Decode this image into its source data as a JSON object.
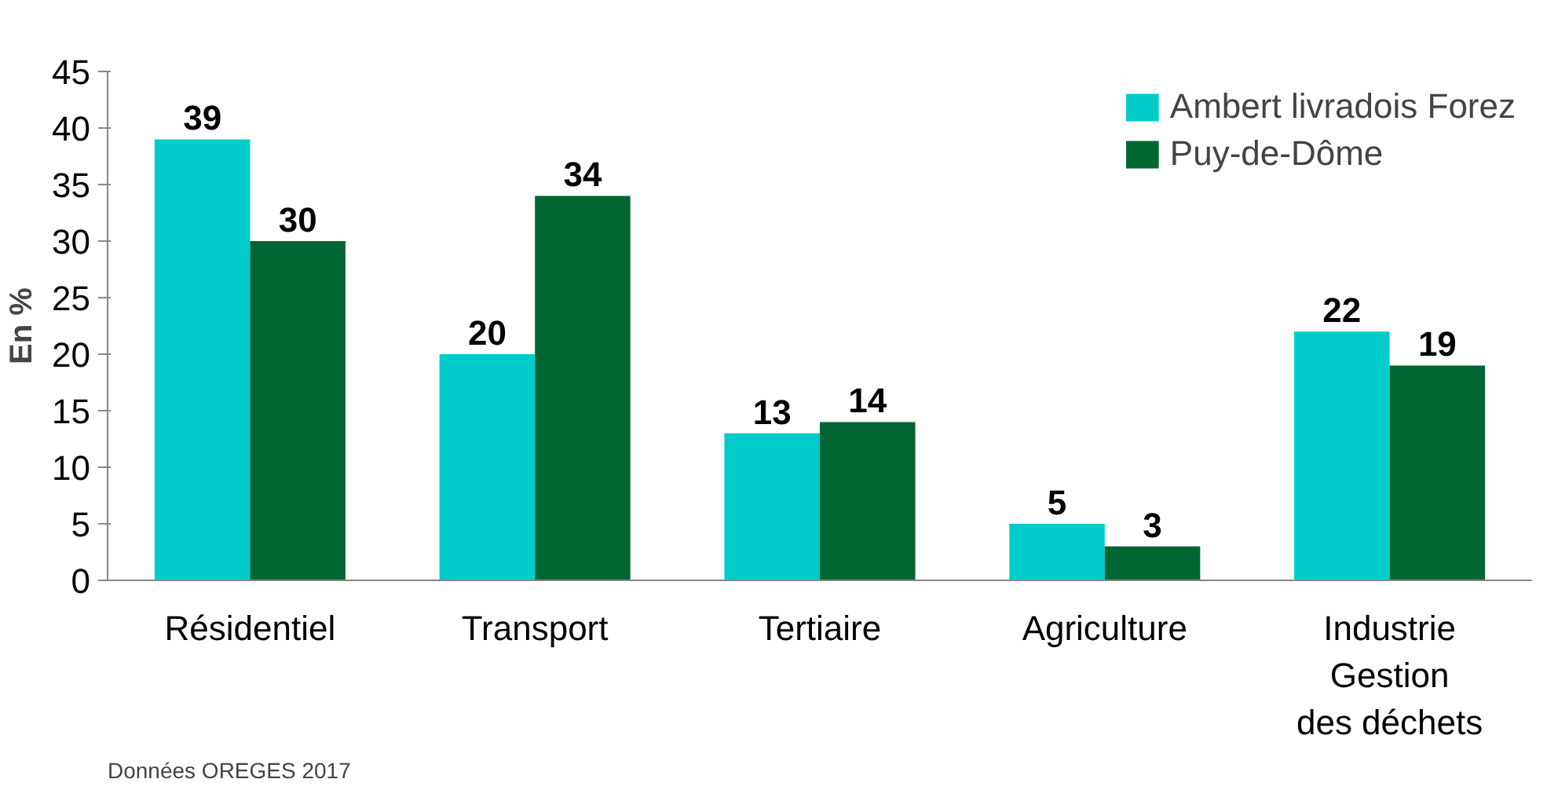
{
  "chart_data": {
    "type": "bar",
    "categories": [
      "Résidentiel",
      "Transport",
      "Tertiaire",
      "Agriculture",
      "Industrie\nGestion\ndes déchets"
    ],
    "series": [
      {
        "name": "Ambert livradois Forez",
        "color": "#00cccc",
        "values": [
          39,
          20,
          13,
          5,
          22
        ]
      },
      {
        "name": "Puy-de-Dôme",
        "color": "#006633",
        "values": [
          30,
          34,
          14,
          3,
          19
        ]
      }
    ],
    "ylabel": "En %",
    "ylim": [
      0,
      45
    ],
    "yticks": [
      0,
      5,
      10,
      15,
      20,
      25,
      30,
      35,
      40,
      45
    ],
    "data_labels": true,
    "legend": "top right",
    "grid": false,
    "annotations": [
      "Données OREGES 2017"
    ]
  }
}
